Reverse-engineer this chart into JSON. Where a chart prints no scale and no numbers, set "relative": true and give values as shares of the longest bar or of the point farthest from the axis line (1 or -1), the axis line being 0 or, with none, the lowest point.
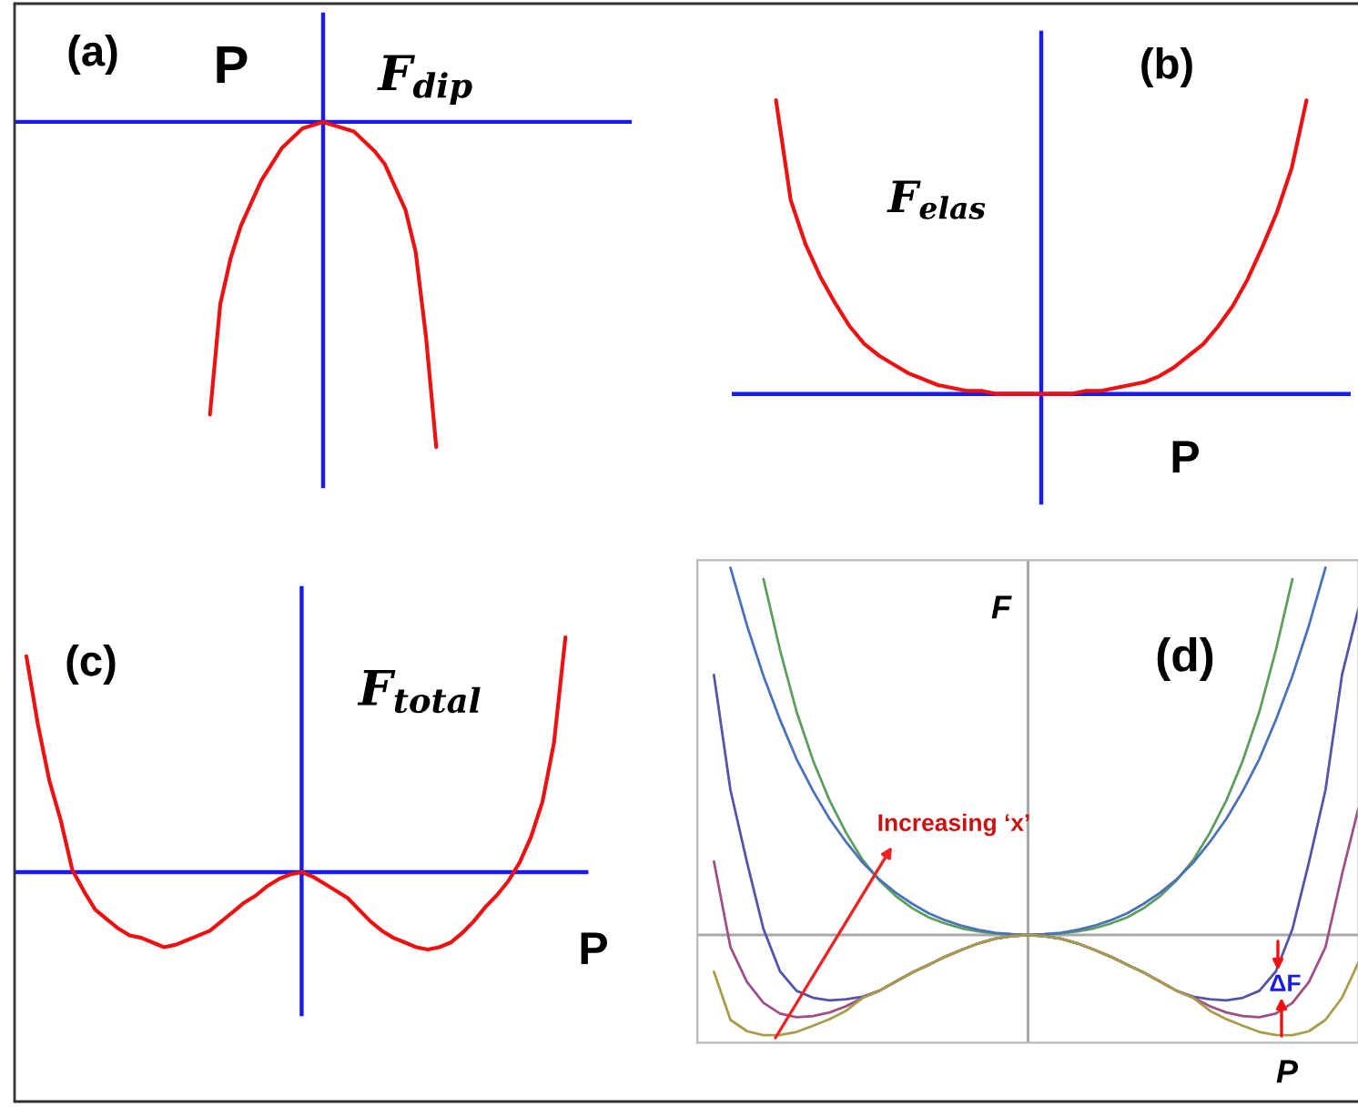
{
  "chart_data": [
    {
      "type": "line",
      "title": "(a)",
      "xlabel": "P",
      "ylabel": "F$_{dip}$",
      "relative": true,
      "ref_lines": [
        {
          "axis": "y",
          "value": 0,
          "color": "#1b1bf0"
        }
      ],
      "categories": [
        null,
        null,
        null,
        null,
        null,
        null,
        null,
        null,
        null,
        null,
        null,
        null,
        null,
        null,
        null,
        null,
        null,
        null,
        null,
        null,
        null,
        null,
        null,
        null,
        null,
        null,
        null,
        null,
        null,
        null,
        null,
        null,
        null,
        null,
        null,
        null,
        null,
        null,
        null,
        null,
        null,
        null,
        null,
        null,
        null,
        null,
        null,
        null,
        null,
        null,
        null,
        null,
        null,
        null,
        null,
        null,
        null,
        null,
        null,
        null,
        null
      ],
      "series": [
        {
          "color": "#ee1111",
          "values": [
            null,
            null,
            null,
            null,
            null,
            null,
            null,
            null,
            null,
            null,
            null,
            null,
            null,
            null,
            null,
            null,
            null,
            null,
            null,
            -0.9,
            -0.56,
            -0.42,
            -0.32,
            -0.25,
            -0.18,
            -0.13,
            -0.08,
            -0.05,
            -0.02,
            -0.01,
            0,
            -0.01,
            -0.02,
            -0.03,
            -0.06,
            -0.09,
            -0.13,
            -0.2,
            -0.27,
            -0.4,
            -0.66,
            -1,
            null,
            null,
            null,
            null,
            null,
            null,
            null,
            null,
            null,
            null,
            null,
            null,
            null,
            null,
            null,
            null,
            null,
            null,
            null
          ]
        }
      ]
    },
    {
      "type": "line",
      "title": "(b)",
      "xlabel": "P",
      "ylabel": "F$_{elas}$",
      "relative": true,
      "ref_lines": [
        {
          "axis": "y",
          "value": 0,
          "color": "#1b1bf0"
        }
      ],
      "categories": [
        null,
        null,
        null,
        null,
        null,
        null,
        null,
        null,
        null,
        null,
        null,
        null,
        null,
        null,
        null,
        null,
        null,
        null,
        null,
        null,
        null,
        null,
        null,
        null,
        null,
        null,
        null,
        null,
        null,
        null,
        null,
        null,
        null,
        null,
        null,
        null,
        null,
        null,
        null,
        null,
        null,
        null,
        null
      ],
      "series": [
        {
          "color": "#ee1111",
          "values": [
            null,
            null,
            null,
            1.0,
            0.66,
            0.51,
            0.4,
            0.31,
            0.23,
            0.17,
            0.13,
            0.1,
            0.07,
            0.05,
            0.03,
            0.02,
            0.01,
            0.01,
            0,
            0,
            0,
            0,
            0,
            0,
            0.01,
            0.01,
            0.02,
            0.03,
            0.04,
            0.06,
            0.09,
            0.13,
            0.17,
            0.23,
            0.3,
            0.39,
            0.5,
            0.62,
            0.77,
            1.0,
            null,
            null,
            null
          ]
        }
      ]
    },
    {
      "type": "line",
      "title": "(c)",
      "xlabel": "P",
      "ylabel": "F$_{total}$",
      "relative": true,
      "ref_lines": [
        {
          "axis": "y",
          "value": 0,
          "color": "#1b1bf0"
        }
      ],
      "categories": [
        null,
        null,
        null,
        null,
        null,
        null,
        null,
        null,
        null,
        null,
        null,
        null,
        null,
        null,
        null,
        null,
        null,
        null,
        null,
        null,
        null,
        null,
        null,
        null,
        null,
        null,
        null,
        null,
        null,
        null,
        null,
        null,
        null,
        null,
        null,
        null,
        null,
        null,
        null,
        null,
        null,
        null,
        null,
        null,
        null,
        null,
        null,
        null,
        null,
        null,
        null
      ],
      "series": [
        {
          "color": "#ee1111",
          "values": [
            null,
            0.92,
            0.63,
            0.39,
            0.22,
            0.01,
            -0.08,
            -0.16,
            -0.2,
            -0.24,
            -0.27,
            -0.28,
            -0.3,
            -0.32,
            -0.31,
            -0.29,
            -0.27,
            -0.25,
            -0.21,
            -0.17,
            -0.13,
            -0.1,
            -0.06,
            -0.03,
            -0.01,
            0,
            -0.02,
            -0.05,
            -0.08,
            -0.11,
            -0.16,
            -0.21,
            -0.25,
            -0.28,
            -0.3,
            -0.32,
            -0.33,
            -0.32,
            -0.3,
            -0.26,
            -0.21,
            -0.15,
            -0.1,
            -0.04,
            0.04,
            0.15,
            0.3,
            0.55,
            1.0,
            null,
            null
          ]
        }
      ]
    },
    {
      "type": "line",
      "title": "(d)",
      "xlabel": "P",
      "ylabel": "F",
      "relative": true,
      "annotations": [
        "Increasing ‘x’",
        "ΔF"
      ],
      "categories": [
        null,
        null,
        null,
        null,
        null,
        null,
        null,
        null,
        null,
        null,
        null,
        null,
        null,
        null,
        null,
        null,
        null,
        null,
        null,
        null,
        null,
        null,
        null,
        null,
        null,
        null,
        null,
        null,
        null,
        null,
        null,
        null,
        null,
        null,
        null,
        null,
        null,
        null,
        null,
        null,
        null
      ],
      "series": [
        {
          "color": "#5c9e5c",
          "values": [
            null,
            null,
            null,
            null,
            0.969,
            0.776,
            0.608,
            0.475,
            0.366,
            0.278,
            0.204,
            0.149,
            0.106,
            0.073,
            0.048,
            0.031,
            0.018,
            0.01,
            0.004,
            0.002,
            0,
            0.002,
            0.004,
            0.01,
            0.018,
            0.031,
            0.048,
            0.073,
            0.106,
            0.149,
            0.204,
            0.278,
            0.366,
            0.475,
            0.608,
            0.776,
            0.969,
            null,
            null,
            null,
            null
          ]
        },
        {
          "color": "#4a72b8",
          "values": [
            null,
            null,
            1.0,
            0.843,
            0.705,
            0.586,
            0.479,
            0.392,
            0.316,
            0.253,
            0.197,
            0.152,
            0.115,
            0.085,
            0.059,
            0.04,
            0.025,
            0.014,
            0.006,
            0.002,
            0,
            0.002,
            0.006,
            0.014,
            0.025,
            0.04,
            0.059,
            0.085,
            0.115,
            0.152,
            0.197,
            0.253,
            0.316,
            0.392,
            0.479,
            0.586,
            0.705,
            0.843,
            1.0,
            null,
            null
          ]
        },
        {
          "color": "#5454a8",
          "values": [
            null,
            0.708,
            0.395,
            0.198,
            0.016,
            -0.099,
            -0.152,
            -0.171,
            -0.178,
            -0.175,
            -0.168,
            -0.152,
            -0.127,
            -0.102,
            -0.081,
            -0.059,
            -0.04,
            -0.023,
            -0.01,
            -0.003,
            0,
            -0.003,
            -0.01,
            -0.023,
            -0.04,
            -0.059,
            -0.081,
            -0.102,
            -0.127,
            -0.152,
            -0.168,
            -0.175,
            -0.178,
            -0.171,
            -0.152,
            -0.099,
            0.016,
            0.198,
            0.395,
            0.708,
            0.89
          ]
        },
        {
          "color": "#9e4f86",
          "values": [
            null,
            0.2,
            -0.033,
            -0.128,
            -0.185,
            -0.214,
            -0.224,
            -0.221,
            -0.211,
            -0.194,
            -0.171,
            -0.152,
            -0.127,
            -0.102,
            -0.081,
            -0.059,
            -0.04,
            -0.023,
            -0.01,
            -0.003,
            0,
            -0.003,
            -0.01,
            -0.023,
            -0.04,
            -0.059,
            -0.081,
            -0.102,
            -0.127,
            -0.152,
            -0.171,
            -0.194,
            -0.211,
            -0.221,
            -0.224,
            -0.214,
            -0.185,
            -0.128,
            -0.033,
            0.165,
            0.346
          ]
        },
        {
          "color": "#a69c4a",
          "values": [
            null,
            -0.1,
            -0.231,
            -0.262,
            -0.273,
            -0.272,
            -0.264,
            -0.247,
            -0.229,
            -0.206,
            -0.171,
            -0.152,
            -0.127,
            -0.102,
            -0.081,
            -0.059,
            -0.04,
            -0.023,
            -0.01,
            -0.003,
            0,
            -0.003,
            -0.01,
            -0.023,
            -0.04,
            -0.059,
            -0.081,
            -0.102,
            -0.127,
            -0.152,
            -0.171,
            -0.206,
            -0.229,
            -0.247,
            -0.264,
            -0.272,
            -0.273,
            -0.262,
            -0.231,
            -0.171,
            -0.074
          ]
        }
      ]
    }
  ]
}
